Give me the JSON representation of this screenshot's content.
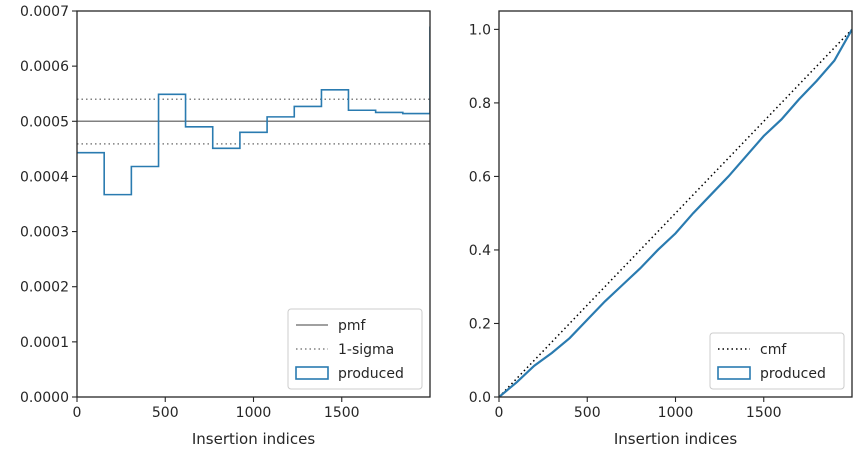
{
  "colors": {
    "produced": "#2a7bb0",
    "pmf": "#808080",
    "sigma": "#808080",
    "cmf": "#000000",
    "axes": "#262626"
  },
  "chart_data": [
    {
      "type": "line",
      "xlabel": "Insertion indices",
      "ylabel": "",
      "xlim": [
        0,
        2000
      ],
      "ylim": [
        0,
        0.0007
      ],
      "xticks": [
        0,
        500,
        1000,
        1500
      ],
      "xtick_labels": [
        "0",
        "500",
        "1000",
        "1500"
      ],
      "yticks": [
        0,
        0.0001,
        0.0002,
        0.0003,
        0.0004,
        0.0005,
        0.0006,
        0.0007
      ],
      "ytick_labels": [
        "0.0000",
        "0.0001",
        "0.0002",
        "0.0003",
        "0.0004",
        "0.0005",
        "0.0006",
        "0.0007"
      ],
      "legend_position": "lower right",
      "pmf": {
        "name": "pmf",
        "value": 0.0005
      },
      "sigma": {
        "name": "1-sigma",
        "upper": 0.00054,
        "lower": 0.000459
      },
      "produced": {
        "name": "produced",
        "bin_edges": [
          0,
          154,
          308,
          462,
          615,
          769,
          923,
          1077,
          1231,
          1385,
          1538,
          1692,
          1846,
          2000
        ],
        "values": [
          0.000443,
          0.000367,
          0.000418,
          0.000549,
          0.00049,
          0.000451,
          0.00048,
          0.000508,
          0.000527,
          0.000557,
          0.00052,
          0.000516,
          0.000514,
          0.000672
        ]
      }
    },
    {
      "type": "line",
      "xlabel": "Insertion indices",
      "ylabel": "",
      "xlim": [
        0,
        2000
      ],
      "ylim": [
        0,
        1.05
      ],
      "xticks": [
        0,
        500,
        1000,
        1500
      ],
      "xtick_labels": [
        "0",
        "500",
        "1000",
        "1500"
      ],
      "yticks": [
        0,
        0.2,
        0.4,
        0.6,
        0.8,
        1.0
      ],
      "ytick_labels": [
        "0.0",
        "0.2",
        "0.4",
        "0.6",
        "0.8",
        "1.0"
      ],
      "legend_position": "lower right",
      "cmf": {
        "name": "cmf",
        "x": [
          0,
          2000
        ],
        "y": [
          0,
          1
        ]
      },
      "produced": {
        "name": "produced",
        "x": [
          0,
          100,
          200,
          300,
          400,
          500,
          600,
          700,
          800,
          900,
          1000,
          1100,
          1200,
          1300,
          1400,
          1500,
          1600,
          1700,
          1800,
          1900,
          2000
        ],
        "y": [
          0,
          0.04,
          0.085,
          0.12,
          0.16,
          0.21,
          0.26,
          0.305,
          0.35,
          0.4,
          0.445,
          0.5,
          0.55,
          0.6,
          0.655,
          0.71,
          0.755,
          0.81,
          0.86,
          0.915,
          1.0
        ]
      }
    }
  ]
}
